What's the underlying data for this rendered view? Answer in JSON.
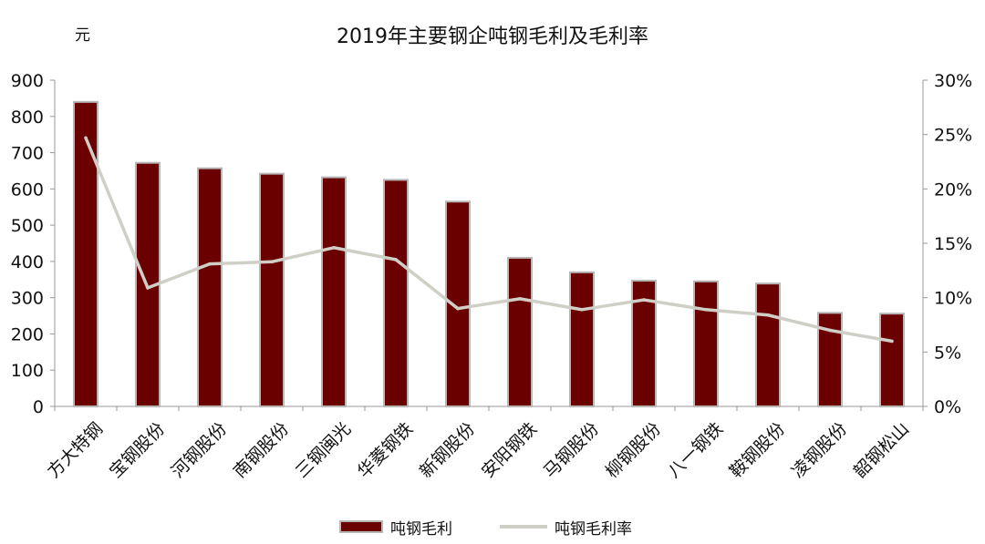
{
  "chart_data": {
    "type": "bar+line",
    "title": "2019年主要钢企吨钢毛利及毛利率",
    "left_unit": "元",
    "categories": [
      "方大特钢",
      "宝钢股份",
      "河钢股份",
      "南钢股份",
      "三钢闽光",
      "华菱钢铁",
      "新钢股份",
      "安阳钢铁",
      "马钢股份",
      "柳钢股份",
      "八一钢铁",
      "鞍钢股份",
      "凌钢股份",
      "韶钢松山"
    ],
    "series": [
      {
        "name": "吨钢毛利",
        "type": "bar",
        "axis": "left",
        "color": "#6b0000",
        "values": [
          840,
          672,
          657,
          642,
          632,
          625,
          565,
          410,
          370,
          347,
          345,
          339,
          258,
          256
        ]
      },
      {
        "name": "吨钢毛利率",
        "type": "line",
        "axis": "right",
        "color": "#cfcfc7",
        "values": [
          24.7,
          10.9,
          13.1,
          13.3,
          14.6,
          13.5,
          9.0,
          9.9,
          8.9,
          9.8,
          8.9,
          8.4,
          7.0,
          6.0
        ]
      }
    ],
    "left_axis": {
      "ylim": [
        0,
        900
      ],
      "ticks": [
        "0",
        "100",
        "200",
        "300",
        "400",
        "500",
        "600",
        "700",
        "800",
        "900"
      ]
    },
    "right_axis": {
      "ylim": [
        0,
        30
      ],
      "ticks": [
        "0%",
        "5%",
        "10%",
        "15%",
        "20%",
        "25%",
        "30%"
      ]
    },
    "grid": false,
    "legend_position": "bottom"
  }
}
